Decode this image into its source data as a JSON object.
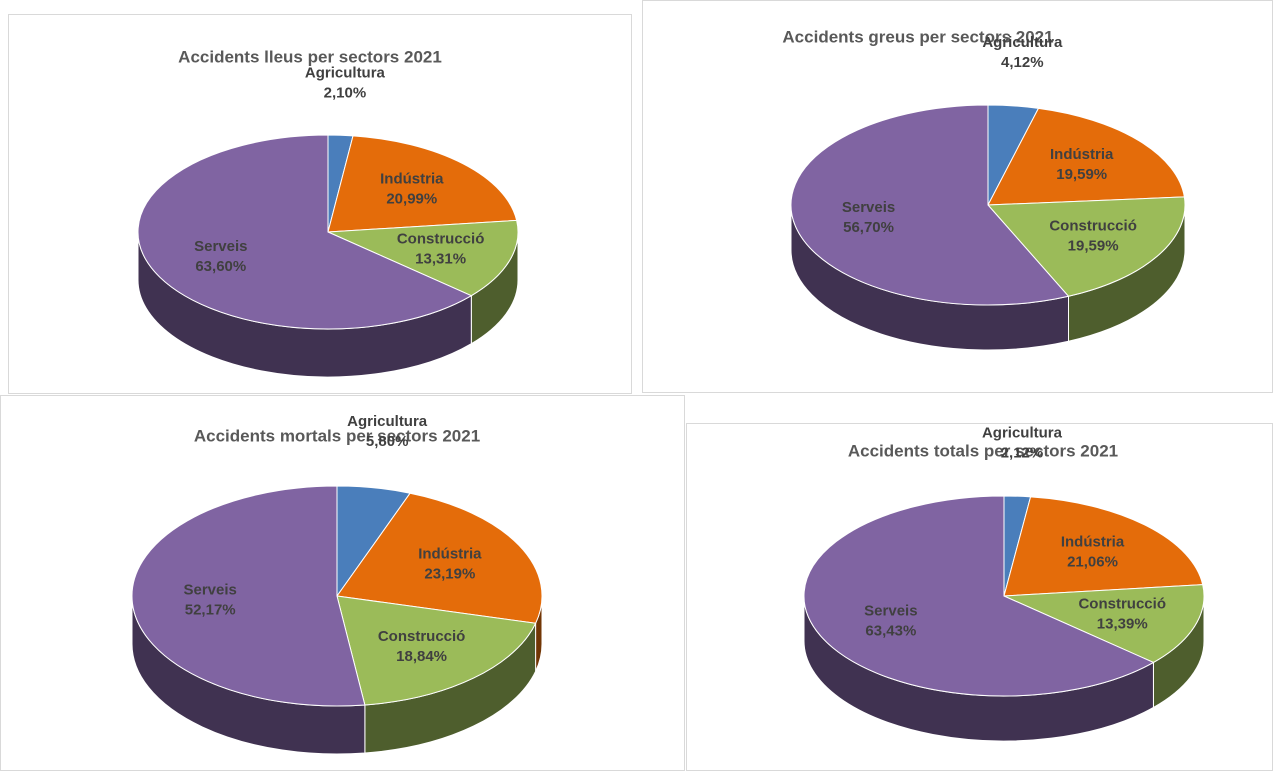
{
  "chart_data": [
    {
      "type": "pie",
      "title": "Accidents lleus per sectors 2021",
      "categories": [
        "Agricultura",
        "Indústria",
        "Construcció",
        "Serveis"
      ],
      "values": [
        2.1,
        20.99,
        13.31,
        63.6
      ],
      "value_labels": [
        "2,10%",
        "20,99%",
        "13,31%",
        "63,60%"
      ],
      "colors": [
        "#4a7ebb",
        "#e46c0a",
        "#9bbb59",
        "#8064a2"
      ]
    },
    {
      "type": "pie",
      "title": "Accidents greus per sectors 2021",
      "categories": [
        "Agricultura",
        "Indústria",
        "Construcció",
        "Serveis"
      ],
      "values": [
        4.12,
        19.59,
        19.59,
        56.7
      ],
      "value_labels": [
        "4,12%",
        "19,59%",
        "19,59%",
        "56,70%"
      ],
      "colors": [
        "#4a7ebb",
        "#e46c0a",
        "#9bbb59",
        "#8064a2"
      ]
    },
    {
      "type": "pie",
      "title": "Accidents mortals per sectors 2021",
      "categories": [
        "Agricultura",
        "Indústria",
        "Construcció",
        "Serveis"
      ],
      "values": [
        5.8,
        23.19,
        18.84,
        52.17
      ],
      "value_labels": [
        "5,80%",
        "23,19%",
        "18,84%",
        "52,17%"
      ],
      "colors": [
        "#4a7ebb",
        "#e46c0a",
        "#9bbb59",
        "#8064a2"
      ]
    },
    {
      "type": "pie",
      "title": "Accidents totals per sectors 2021",
      "categories": [
        "Agricultura",
        "Indústria",
        "Construcció",
        "Serveis"
      ],
      "values": [
        2.12,
        21.06,
        13.39,
        63.43
      ],
      "value_labels": [
        "2,12%",
        "21,06%",
        "13,39%",
        "63,43%"
      ],
      "colors": [
        "#4a7ebb",
        "#e46c0a",
        "#9bbb59",
        "#8064a2"
      ]
    }
  ]
}
